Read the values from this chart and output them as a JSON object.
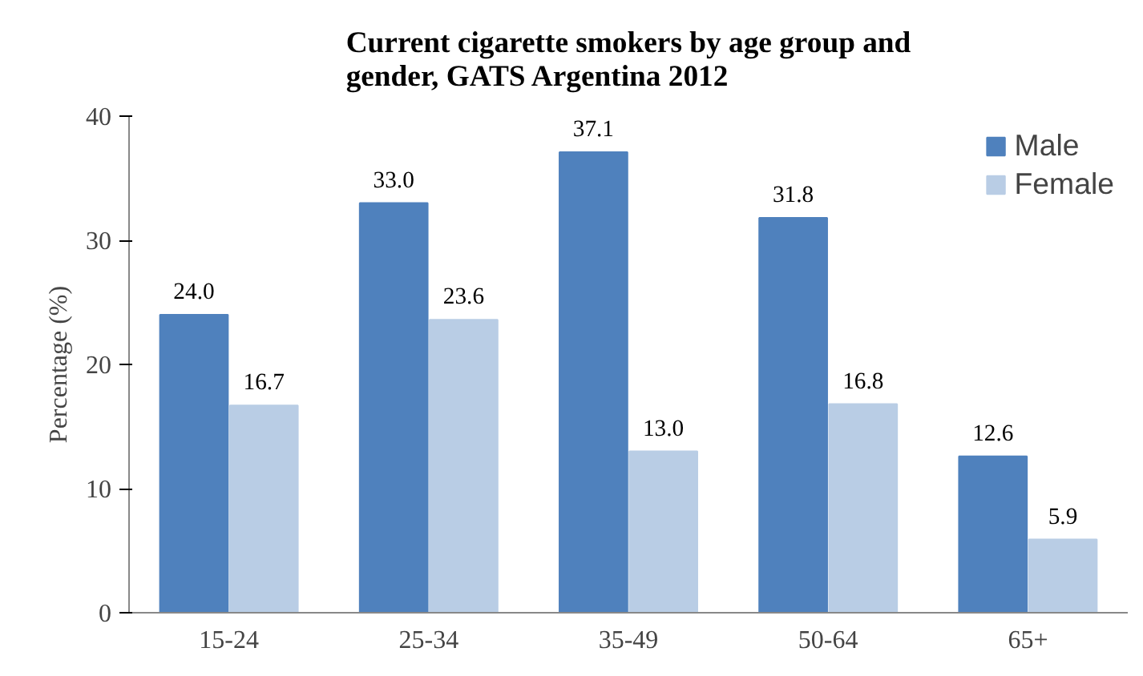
{
  "chart_data": {
    "type": "bar",
    "title": "Current cigarette smokers by age group and\ngender, GATS Argentina 2012",
    "ylabel": "Percentage (%)",
    "categories": [
      "15-24",
      "25-34",
      "35-49",
      "50-64",
      "65+"
    ],
    "series": [
      {
        "name": "Male",
        "color": "#4f81bd",
        "values": [
          24.0,
          33.0,
          37.1,
          31.8,
          12.6
        ],
        "value_labels": [
          "24.0",
          "33.0",
          "37.1",
          "31.8",
          "12.6"
        ]
      },
      {
        "name": "Female",
        "color": "#b9cde5",
        "values": [
          16.7,
          23.6,
          13.0,
          16.8,
          5.9
        ],
        "value_labels": [
          "16.7",
          "23.6",
          "13.0",
          "16.8",
          "5.9"
        ]
      }
    ],
    "ylim": [
      0,
      40
    ],
    "yticks": [
      0,
      10,
      20,
      30,
      40
    ],
    "grid": false,
    "legend": "top right"
  }
}
